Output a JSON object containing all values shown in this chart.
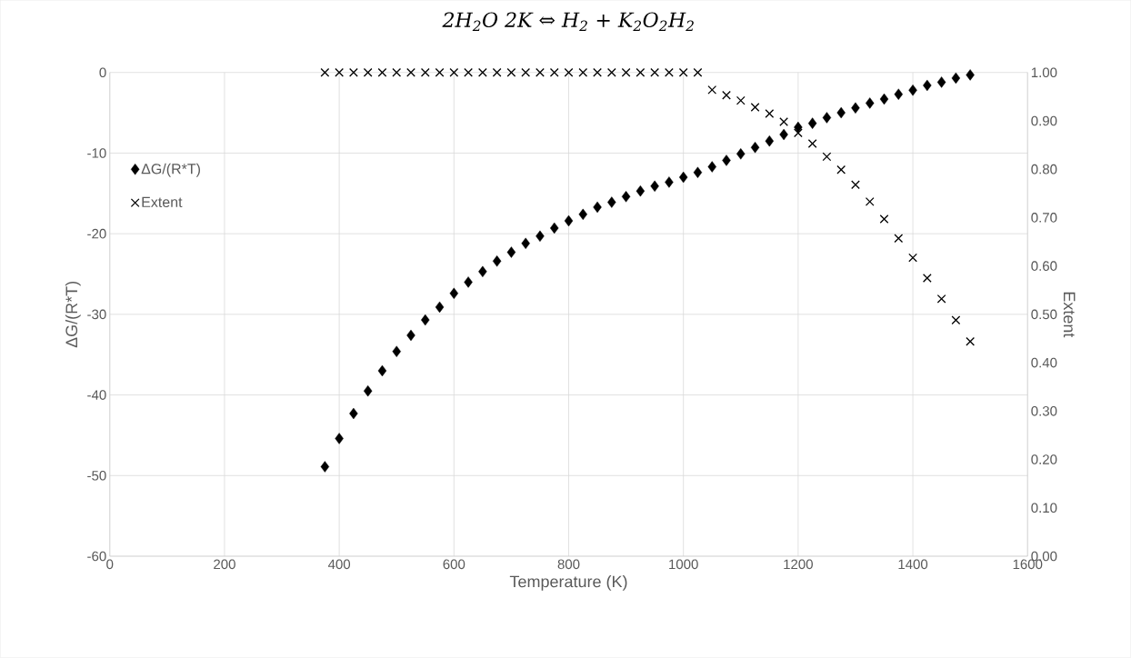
{
  "chart_data": {
    "type": "scatter",
    "title": "2H$_{2}$O 2K ⇔ H$_{2}$ + K$_{2}$O$_{2}$H$_{2}$",
    "xlabel": "Temperature (K)",
    "ylabel": "ΔG/(R*T)",
    "y2label": "Extent",
    "x": [
      375,
      400,
      425,
      450,
      475,
      500,
      525,
      550,
      575,
      600,
      625,
      650,
      675,
      700,
      725,
      750,
      775,
      800,
      825,
      850,
      875,
      900,
      925,
      950,
      975,
      1000,
      1025,
      1050,
      1075,
      1100,
      1125,
      1150,
      1175,
      1200,
      1225,
      1250,
      1275,
      1300,
      1325,
      1350,
      1375,
      1400,
      1425,
      1450,
      1475,
      1500
    ],
    "series": [
      {
        "name": "ΔG/(R*T)",
        "color": "#000000",
        "marker": "diamond",
        "axis": "y",
        "values": [
          -48.9,
          -45.4,
          -42.3,
          -39.5,
          -37.0,
          -34.6,
          -32.6,
          -30.7,
          -29.1,
          -27.4,
          -26.0,
          -24.7,
          -23.4,
          -22.3,
          -21.2,
          -20.3,
          -19.3,
          -18.4,
          -17.6,
          -16.7,
          -16.1,
          -15.4,
          -14.7,
          -14.1,
          -13.6,
          -13.0,
          -12.4,
          -11.7,
          -10.9,
          -10.1,
          -9.3,
          -8.5,
          -7.7,
          -6.8,
          -6.3,
          -5.6,
          -5.0,
          -4.4,
          -3.8,
          -3.3,
          -2.7,
          -2.2,
          -1.6,
          -1.2,
          -0.7,
          -0.3
        ]
      },
      {
        "name": "Extent",
        "color": "#000000",
        "marker": "cross",
        "axis": "y2",
        "values": [
          1.0,
          1.0,
          1.0,
          1.0,
          1.0,
          1.0,
          1.0,
          1.0,
          1.0,
          1.0,
          1.0,
          1.0,
          1.0,
          1.0,
          1.0,
          1.0,
          1.0,
          1.0,
          1.0,
          1.0,
          1.0,
          1.0,
          1.0,
          1.0,
          1.0,
          1.0,
          1.0,
          0.964,
          0.953,
          0.942,
          0.928,
          0.915,
          0.898,
          0.875,
          0.853,
          0.826,
          0.799,
          0.768,
          0.733,
          0.697,
          0.657,
          0.617,
          0.575,
          0.532,
          0.488,
          0.444
        ]
      }
    ],
    "xlim": [
      0,
      1600
    ],
    "xticks": [
      0,
      200,
      400,
      600,
      800,
      1000,
      1200,
      1400,
      1600
    ],
    "ylim": [
      -60,
      0
    ],
    "yticks": [
      -60,
      -50,
      -40,
      -30,
      -20,
      -10,
      0
    ],
    "y2lim": [
      0,
      1
    ],
    "y2ticks": [
      {
        "value": 0,
        "label": "0.00"
      },
      {
        "value": 0.1,
        "label": "0.10"
      },
      {
        "value": 0.2,
        "label": "0.20"
      },
      {
        "value": 0.3,
        "label": "0.30"
      },
      {
        "value": 0.4,
        "label": "0.40"
      },
      {
        "value": 0.5,
        "label": "0.50"
      },
      {
        "value": 0.6,
        "label": "0.60"
      },
      {
        "value": 0.7,
        "label": "0.70"
      },
      {
        "value": 0.8,
        "label": "0.80"
      },
      {
        "value": 0.9,
        "label": "0.90"
      },
      {
        "value": 1,
        "label": "1.00"
      }
    ],
    "grid": true,
    "legend": "left"
  }
}
